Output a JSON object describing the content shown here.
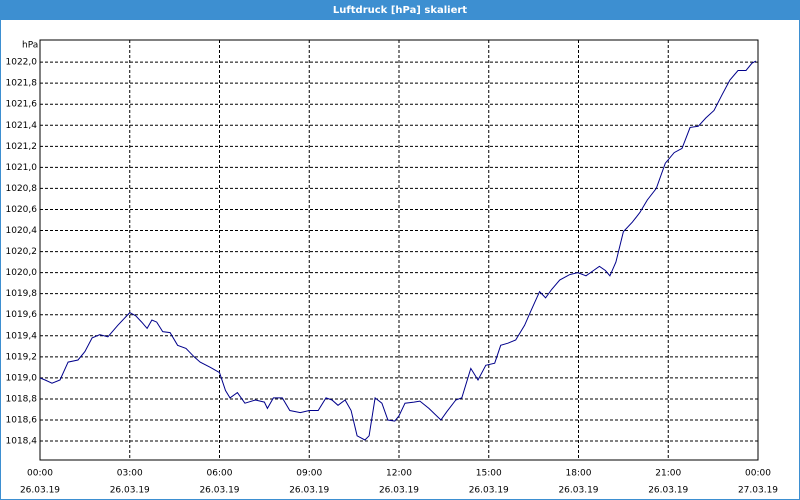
{
  "chart_data": {
    "type": "line",
    "title": "Luftdruck [hPa] skaliert",
    "y_label": "hPa",
    "x": [
      0,
      0.17,
      0.4,
      0.67,
      0.94,
      1.27,
      1.5,
      1.74,
      2.0,
      2.27,
      2.6,
      3.0,
      3.2,
      3.4,
      3.58,
      3.74,
      3.9,
      4.1,
      4.35,
      4.6,
      4.88,
      5.15,
      5.35,
      5.7,
      6.0,
      6.2,
      6.35,
      6.6,
      6.85,
      7.2,
      7.5,
      7.6,
      7.8,
      8.1,
      8.35,
      8.7,
      9.0,
      9.3,
      9.56,
      9.76,
      9.96,
      10.2,
      10.4,
      10.6,
      10.86,
      11.0,
      11.2,
      11.43,
      11.63,
      11.86,
      12.0,
      12.2,
      12.5,
      12.7,
      13.0,
      13.4,
      13.6,
      13.9,
      14.1,
      14.4,
      14.64,
      14.9,
      15.2,
      15.4,
      15.64,
      15.9,
      16.2,
      16.4,
      16.7,
      16.9,
      17.1,
      17.37,
      17.7,
      17.98,
      18.25,
      18.5,
      18.7,
      18.9,
      19.05,
      19.25,
      19.5,
      19.8,
      20.05,
      20.3,
      20.6,
      20.9,
      21.2,
      21.46,
      21.73,
      22.0,
      22.26,
      22.53,
      22.8,
      23.06,
      23.33,
      23.6,
      23.8,
      23.93
    ],
    "series": [
      {
        "color": "#00008b",
        "values": [
          1019.0,
          1018.98,
          1018.95,
          1018.98,
          1019.15,
          1019.17,
          1019.25,
          1019.38,
          1019.41,
          1019.39,
          1019.5,
          1019.62,
          1019.59,
          1019.53,
          1019.47,
          1019.55,
          1019.53,
          1019.44,
          1019.43,
          1019.31,
          1019.28,
          1019.2,
          1019.15,
          1019.1,
          1019.05,
          1018.88,
          1018.81,
          1018.86,
          1018.76,
          1018.79,
          1018.77,
          1018.71,
          1018.81,
          1018.81,
          1018.69,
          1018.67,
          1018.69,
          1018.69,
          1018.81,
          1018.79,
          1018.74,
          1018.79,
          1018.69,
          1018.45,
          1018.41,
          1018.45,
          1018.81,
          1018.76,
          1018.6,
          1018.59,
          1018.64,
          1018.76,
          1018.77,
          1018.78,
          1018.71,
          1018.6,
          1018.68,
          1018.79,
          1018.81,
          1019.09,
          1018.98,
          1019.12,
          1019.14,
          1019.31,
          1019.33,
          1019.36,
          1019.5,
          1019.63,
          1019.82,
          1019.76,
          1019.84,
          1019.93,
          1019.98,
          1020.0,
          1019.97,
          1020.02,
          1020.06,
          1020.02,
          1019.97,
          1020.1,
          1020.39,
          1020.48,
          1020.57,
          1020.69,
          1020.8,
          1021.04,
          1021.14,
          1021.18,
          1021.38,
          1021.39,
          1021.47,
          1021.54,
          1021.69,
          1021.83,
          1021.92,
          1021.92,
          1021.99,
          1022.01
        ]
      }
    ],
    "xlim": [
      0,
      24
    ],
    "xticks": [
      {
        "value": 0,
        "label": "00:00"
      },
      {
        "value": 3,
        "label": "03:00"
      },
      {
        "value": 6,
        "label": "06:00"
      },
      {
        "value": 9,
        "label": "09:00"
      },
      {
        "value": 12,
        "label": "12:00"
      },
      {
        "value": 15,
        "label": "15:00"
      },
      {
        "value": 18,
        "label": "18:00"
      },
      {
        "value": 21,
        "label": "21:00"
      },
      {
        "value": 24,
        "label": "00:00"
      }
    ],
    "xtick_dates": [
      "26.03.19",
      "26.03.19",
      "26.03.19",
      "26.03.19",
      "26.03.19",
      "26.03.19",
      "26.03.19",
      "26.03.19",
      "27.03.19"
    ],
    "ylim": [
      1018.22,
      1022.21
    ],
    "yticks": [
      {
        "value": 1018.4,
        "label": "1018,4"
      },
      {
        "value": 1018.6,
        "label": "1018,6"
      },
      {
        "value": 1018.8,
        "label": "1018,8"
      },
      {
        "value": 1019.0,
        "label": "1019,0"
      },
      {
        "value": 1019.2,
        "label": "1019,2"
      },
      {
        "value": 1019.4,
        "label": "1019,4"
      },
      {
        "value": 1019.6,
        "label": "1019,6"
      },
      {
        "value": 1019.8,
        "label": "1019,8"
      },
      {
        "value": 1020.0,
        "label": "1020,0"
      },
      {
        "value": 1020.2,
        "label": "1020,2"
      },
      {
        "value": 1020.4,
        "label": "1020,4"
      },
      {
        "value": 1020.6,
        "label": "1020,6"
      },
      {
        "value": 1020.8,
        "label": "1020,8"
      },
      {
        "value": 1021.0,
        "label": "1021,0"
      },
      {
        "value": 1021.2,
        "label": "1021,2"
      },
      {
        "value": 1021.4,
        "label": "1021,4"
      },
      {
        "value": 1021.6,
        "label": "1021,6"
      },
      {
        "value": 1021.8,
        "label": "1021,8"
      },
      {
        "value": 1022.0,
        "label": "1022,0"
      }
    ],
    "grid": true
  }
}
